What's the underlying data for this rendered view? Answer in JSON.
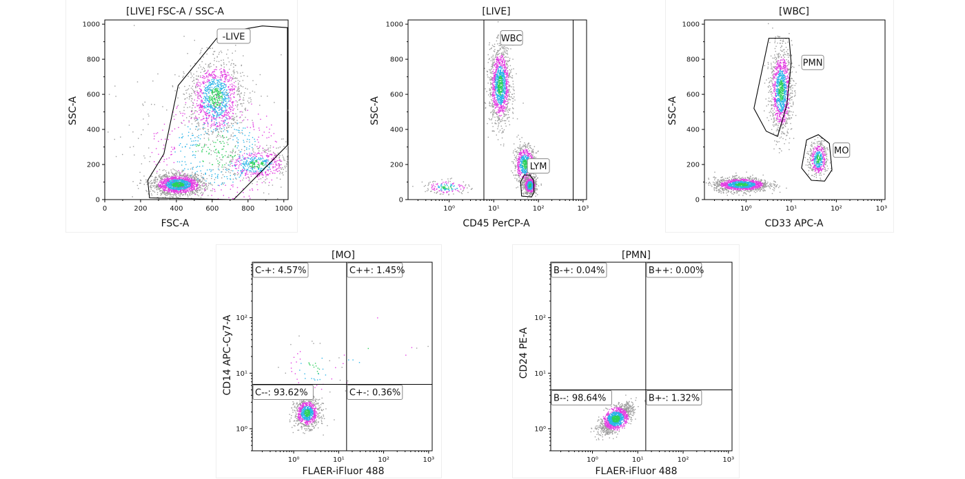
{
  "chart_data": [
    {
      "id": "p1",
      "type": "scatter",
      "title": "[LIVE] FSC-A / SSC-A",
      "xlabel": "FSC-A",
      "ylabel": "SSC-A",
      "xscale": "linear",
      "yscale": "linear",
      "xlim": [
        0,
        1024
      ],
      "ylim": [
        0,
        1024
      ],
      "xticks": [
        0,
        200,
        400,
        600,
        800,
        1000
      ],
      "xticklabels": [
        "0",
        "200",
        "400",
        "600",
        "800",
        "1000"
      ],
      "yticks": [
        0,
        200,
        400,
        600,
        800,
        1000
      ],
      "yticklabels": [
        "0",
        "200",
        "400",
        "600",
        "800",
        "1000"
      ],
      "populations": [
        {
          "cx": 410,
          "cy": 85,
          "sx": 70,
          "sy": 30,
          "n": 1600
        },
        {
          "cx": 620,
          "cy": 580,
          "sx": 75,
          "sy": 110,
          "n": 1200
        },
        {
          "cx": 850,
          "cy": 200,
          "sx": 90,
          "sy": 45,
          "n": 500
        },
        {
          "cx": 620,
          "cy": 280,
          "sx": 230,
          "sy": 200,
          "n": 700
        }
      ],
      "gates": [
        {
          "kind": "polygon",
          "label": "-LIVE",
          "label_at": [
            720,
            930
          ],
          "points": [
            [
              250,
              10
            ],
            [
              240,
              110
            ],
            [
              330,
              260
            ],
            [
              410,
              650
            ],
            [
              650,
              950
            ],
            [
              880,
              990
            ],
            [
              1020,
              980
            ],
            [
              1020,
              310
            ],
            [
              720,
              0
            ]
          ]
        }
      ]
    },
    {
      "id": "p2",
      "type": "scatter",
      "title": "[LIVE]",
      "xlabel": "CD45 PerCP-A",
      "ylabel": "SSC-A",
      "xscale": "log",
      "yscale": "linear",
      "xlim": [
        0.12,
        1200
      ],
      "ylim": [
        0,
        1024
      ],
      "xticks": [
        1,
        10,
        100,
        1000
      ],
      "xticklabels": [
        "10⁰",
        "10¹",
        "10²",
        "10³"
      ],
      "yticks": [
        0,
        200,
        400,
        600,
        800,
        1000
      ],
      "yticklabels": [
        "0",
        "200",
        "400",
        "600",
        "800",
        "1000"
      ],
      "populations": [
        {
          "cx": 14,
          "cy": 650,
          "sx": 0.12,
          "sy": 110,
          "n": 1300
        },
        {
          "cx": 50,
          "cy": 200,
          "sx": 0.12,
          "sy": 55,
          "n": 700
        },
        {
          "cx": 65,
          "cy": 80,
          "sx": 0.07,
          "sy": 25,
          "n": 700
        },
        {
          "cx": 0.9,
          "cy": 70,
          "sx": 0.25,
          "sy": 20,
          "n": 160
        }
      ],
      "gates": [
        {
          "kind": "vrange",
          "label": "WBC",
          "label_at": [
            25,
            920
          ],
          "x1": 6,
          "x2": 600
        },
        {
          "kind": "polygon",
          "label": "LYM",
          "label_at": [
            100,
            190
          ],
          "points": [
            [
              42,
              20
            ],
            [
              40,
              100
            ],
            [
              48,
              140
            ],
            [
              65,
              140
            ],
            [
              78,
              110
            ],
            [
              80,
              40
            ],
            [
              70,
              15
            ]
          ]
        }
      ]
    },
    {
      "id": "p3",
      "type": "scatter",
      "title": "[WBC]",
      "xlabel": "CD33 APC-A",
      "ylabel": "SSC-A",
      "xscale": "log",
      "yscale": "linear",
      "xlim": [
        0.12,
        1200
      ],
      "ylim": [
        0,
        1024
      ],
      "xticks": [
        1,
        10,
        100,
        1000
      ],
      "xticklabels": [
        "10⁰",
        "10¹",
        "10²",
        "10³"
      ],
      "yticks": [
        0,
        200,
        400,
        600,
        800,
        1000
      ],
      "yticklabels": [
        "0",
        "200",
        "400",
        "600",
        "800",
        "1000"
      ],
      "populations": [
        {
          "cx": 6,
          "cy": 620,
          "sx": 0.12,
          "sy": 120,
          "n": 1200
        },
        {
          "cx": 40,
          "cy": 230,
          "sx": 0.1,
          "sy": 50,
          "n": 500
        },
        {
          "cx": 0.8,
          "cy": 85,
          "sx": 0.3,
          "sy": 20,
          "n": 1300
        }
      ],
      "gates": [
        {
          "kind": "polygon",
          "label": "PMN",
          "label_at": [
            30,
            780
          ],
          "points": [
            [
              5,
              360
            ],
            [
              2.8,
              390
            ],
            [
              1.5,
              520
            ],
            [
              3.2,
              920
            ],
            [
              9,
              920
            ],
            [
              10,
              780
            ],
            [
              8,
              540
            ]
          ]
        },
        {
          "kind": "polygon",
          "label": "MO",
          "label_at": [
            130,
            280
          ],
          "points": [
            [
              17,
              180
            ],
            [
              22,
              340
            ],
            [
              40,
              370
            ],
            [
              70,
              320
            ],
            [
              80,
              170
            ],
            [
              55,
              105
            ],
            [
              28,
              110
            ]
          ]
        }
      ]
    },
    {
      "id": "p4",
      "type": "scatter",
      "title": "[MO]",
      "xlabel": "FLAER-iFluor 488",
      "ylabel": "CD14 APC-Cy7-A",
      "xscale": "log",
      "yscale": "log",
      "xlim": [
        0.12,
        1200
      ],
      "ylim": [
        0.4,
        1000
      ],
      "xticks": [
        1,
        10,
        100,
        1000
      ],
      "xticklabels": [
        "10⁰",
        "10¹",
        "10²",
        "10³"
      ],
      "yticks": [
        1,
        10,
        100
      ],
      "yticklabels": [
        "10⁰",
        "10¹",
        "10²"
      ],
      "populations": [
        {
          "cx": 2.0,
          "cy": 1.9,
          "sx": 0.14,
          "sy": 0.13,
          "n": 900
        },
        {
          "cx": 2.6,
          "cy": 12,
          "sx": 0.35,
          "sy": 0.25,
          "n": 60
        },
        {
          "cx": 60,
          "cy": 20,
          "sx": 0.6,
          "sy": 0.5,
          "n": 14
        }
      ],
      "gates": [
        {
          "kind": "quadrant",
          "x": 15,
          "y": 6.3
        }
      ],
      "quadrant_labels": [
        {
          "text": "C-+: 4.57%",
          "pos": "top-left"
        },
        {
          "text": "C++: 1.45%",
          "pos": "top-right"
        },
        {
          "text": "C--: 93.62%",
          "pos": "bottom-left"
        },
        {
          "text": "C+-: 0.36%",
          "pos": "bottom-right"
        }
      ]
    },
    {
      "id": "p5",
      "type": "scatter",
      "title": "[PMN]",
      "xlabel": "FLAER-iFluor 488",
      "ylabel": "CD24 PE-A",
      "xscale": "log",
      "yscale": "log",
      "xlim": [
        0.12,
        1200
      ],
      "ylim": [
        0.4,
        1000
      ],
      "xticks": [
        1,
        10,
        100,
        1000
      ],
      "xticklabels": [
        "10⁰",
        "10¹",
        "10²",
        "10³"
      ],
      "yticks": [
        1,
        10,
        100
      ],
      "yticklabels": [
        "10⁰",
        "10¹",
        "10²"
      ],
      "populations": [
        {
          "cx": 3.3,
          "cy": 1.5,
          "sx": 0.18,
          "sy": 0.13,
          "n": 1300,
          "corr": 0.65
        }
      ],
      "gates": [
        {
          "kind": "quadrant",
          "x": 15,
          "y": 5
        }
      ],
      "quadrant_labels": [
        {
          "text": "B-+: 0.04%",
          "pos": "top-left"
        },
        {
          "text": "B++: 0.00%",
          "pos": "top-right"
        },
        {
          "text": "B--: 98.64%",
          "pos": "bottom-left"
        },
        {
          "text": "B+-: 1.32%",
          "pos": "bottom-right"
        }
      ]
    }
  ],
  "colors": {
    "density_low": "#9a9a9a",
    "density_mid": "#e23ce0",
    "density_high": "#2ab4e8",
    "density_peak": "#2bd05a",
    "gate": "#000000"
  }
}
